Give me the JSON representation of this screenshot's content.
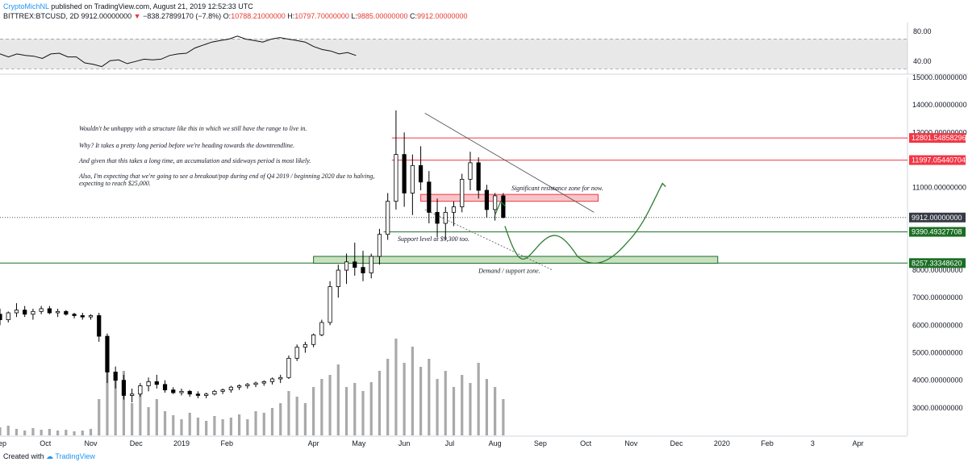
{
  "header": {
    "author": "CryptoMichNL",
    "published": "published on TradingView.com, August 21, 2019 12:52:33 UTC",
    "symbol": "BITTREX:BTCUSD, 2D",
    "last": "9912.00000000",
    "change": "−838.27899170 (−7.8%)",
    "o_label": "O:",
    "o_value": "10788.21000000",
    "h_label": "H:",
    "h_value": "10797.70000000",
    "l_label": "L:",
    "l_value": "9885.00000000",
    "c_label": "C:",
    "c_value": "9912.00000000"
  },
  "footer": {
    "created_with": "Created with",
    "brand": "TradingView"
  },
  "chart_data": [
    {
      "type": "line",
      "name": "RSI",
      "ylim": [
        25,
        90
      ],
      "y_ticks": [
        80,
        40
      ],
      "y_tick_labels": [
        "80.00",
        "40.00"
      ],
      "band": [
        30,
        70
      ],
      "x_range": [
        0,
        63
      ],
      "values": [
        [
          0,
          50
        ],
        [
          1,
          46
        ],
        [
          2,
          50
        ],
        [
          3,
          48
        ],
        [
          4,
          47
        ],
        [
          5,
          44
        ],
        [
          6,
          50
        ],
        [
          7,
          51
        ],
        [
          8,
          46
        ],
        [
          9,
          46
        ],
        [
          10,
          38
        ],
        [
          11,
          36
        ],
        [
          12,
          33
        ],
        [
          13,
          41
        ],
        [
          14,
          42
        ],
        [
          15,
          37
        ],
        [
          16,
          40
        ],
        [
          17,
          43
        ],
        [
          18,
          42
        ],
        [
          19,
          43
        ],
        [
          20,
          48
        ],
        [
          21,
          50
        ],
        [
          22,
          51
        ],
        [
          23,
          58
        ],
        [
          24,
          62
        ],
        [
          25,
          66
        ],
        [
          26,
          68
        ],
        [
          27,
          70
        ],
        [
          28,
          74
        ],
        [
          29,
          70
        ],
        [
          30,
          68
        ],
        [
          31,
          66
        ],
        [
          32,
          70
        ],
        [
          33,
          72
        ],
        [
          34,
          70
        ],
        [
          35,
          68
        ],
        [
          36,
          66
        ],
        [
          37,
          60
        ],
        [
          38,
          56
        ],
        [
          39,
          54
        ],
        [
          40,
          50
        ],
        [
          41,
          52
        ],
        [
          42,
          48
        ]
      ]
    },
    {
      "type": "candlestick",
      "name": "BTCUSD",
      "ylim": [
        2000,
        15000
      ],
      "y_ticks": [
        3000,
        4000,
        5000,
        6000,
        7000,
        8000,
        11000,
        13000,
        14000,
        15000
      ],
      "y_tick_labels": [
        "3000.00000000",
        "4000.00000000",
        "5000.00000000",
        "6000.00000000",
        "7000.00000000",
        "8000.00000000",
        "11000.00000000",
        "13000.00000000",
        "14000.00000000",
        "15000.00000000"
      ],
      "x_ticks": [
        "Sep",
        "Oct",
        "Nov",
        "Dec",
        "2019",
        "Feb",
        "Apr",
        "May",
        "Jun",
        "Jul",
        "Aug",
        "Sep",
        "Oct",
        "Nov",
        "Dec",
        "2020",
        "Feb",
        "3",
        "Apr"
      ],
      "x_range": [
        0,
        110
      ],
      "x_tick_pos": [
        0,
        5.5,
        11,
        16.5,
        22,
        27.5,
        38,
        43.5,
        49,
        54.5,
        60,
        65.5,
        71,
        76.5,
        82,
        87.5,
        93,
        98.5,
        104
      ],
      "candles": [
        [
          0,
          6400,
          6600,
          6000,
          6200
        ],
        [
          1,
          6200,
          6500,
          6100,
          6450
        ],
        [
          2,
          6450,
          6800,
          6300,
          6550
        ],
        [
          3,
          6550,
          6700,
          6300,
          6400
        ],
        [
          4,
          6400,
          6600,
          6200,
          6500
        ],
        [
          5,
          6500,
          6700,
          6400,
          6600
        ],
        [
          6,
          6600,
          6700,
          6400,
          6450
        ],
        [
          7,
          6450,
          6600,
          6300,
          6500
        ],
        [
          8,
          6500,
          6550,
          6350,
          6400
        ],
        [
          9,
          6400,
          6450,
          6250,
          6350
        ],
        [
          10,
          6350,
          6450,
          6200,
          6300
        ],
        [
          11,
          6300,
          6400,
          6200,
          6350
        ],
        [
          12,
          6350,
          6450,
          5400,
          5600
        ],
        [
          13,
          5600,
          5700,
          3900,
          4300
        ],
        [
          14,
          4300,
          4500,
          3700,
          4000
        ],
        [
          15,
          4000,
          4200,
          3300,
          3450
        ],
        [
          16,
          3450,
          3700,
          3200,
          3500
        ],
        [
          17,
          3500,
          3900,
          3400,
          3800
        ],
        [
          18,
          3800,
          4100,
          3600,
          3950
        ],
        [
          19,
          3950,
          4200,
          3700,
          3850
        ],
        [
          20,
          3850,
          4000,
          3550,
          3650
        ],
        [
          21,
          3650,
          3750,
          3500,
          3550
        ],
        [
          22,
          3550,
          3700,
          3450,
          3600
        ],
        [
          23,
          3600,
          3650,
          3400,
          3500
        ],
        [
          24,
          3500,
          3600,
          3350,
          3450
        ],
        [
          25,
          3450,
          3550,
          3350,
          3500
        ],
        [
          26,
          3500,
          3650,
          3450,
          3600
        ],
        [
          27,
          3600,
          3700,
          3500,
          3650
        ],
        [
          28,
          3650,
          3800,
          3550,
          3750
        ],
        [
          29,
          3750,
          3850,
          3650,
          3800
        ],
        [
          30,
          3800,
          3900,
          3700,
          3850
        ],
        [
          31,
          3850,
          3950,
          3750,
          3900
        ],
        [
          32,
          3900,
          4000,
          3800,
          3950
        ],
        [
          33,
          3950,
          4100,
          3850,
          4050
        ],
        [
          34,
          4050,
          4200,
          3900,
          4100
        ],
        [
          35,
          4100,
          4900,
          4050,
          4800
        ],
        [
          36,
          4800,
          5300,
          4700,
          5200
        ],
        [
          37,
          5200,
          5400,
          5000,
          5300
        ],
        [
          38,
          5300,
          5700,
          5200,
          5650
        ],
        [
          39,
          5650,
          6200,
          5600,
          6100
        ],
        [
          40,
          6100,
          7600,
          6000,
          7400
        ],
        [
          41,
          7400,
          8200,
          7000,
          8000
        ],
        [
          42,
          8000,
          8600,
          7500,
          8300
        ],
        [
          43,
          8300,
          9000,
          7800,
          8100
        ],
        [
          44,
          8100,
          8700,
          7600,
          7900
        ],
        [
          45,
          7900,
          8600,
          7700,
          8500
        ],
        [
          46,
          8500,
          9500,
          8200,
          9300
        ],
        [
          47,
          9300,
          10800,
          9100,
          10500
        ],
        [
          48,
          10500,
          13800,
          10200,
          12200
        ],
        [
          49,
          12200,
          13000,
          10300,
          10800
        ],
        [
          50,
          10800,
          12200,
          10000,
          11800
        ],
        [
          51,
          11800,
          12500,
          10900,
          11200
        ],
        [
          52,
          11200,
          11600,
          9700,
          10100
        ],
        [
          53,
          10100,
          10600,
          9200,
          9700
        ],
        [
          54,
          9700,
          10300,
          9100,
          10100
        ],
        [
          55,
          10100,
          10500,
          9600,
          10300
        ],
        [
          56,
          10300,
          11500,
          10100,
          11300
        ],
        [
          57,
          11300,
          12300,
          10900,
          11900
        ],
        [
          58,
          11900,
          12100,
          10600,
          10900
        ],
        [
          59,
          10900,
          11100,
          9900,
          10200
        ],
        [
          60,
          10200,
          10800,
          9800,
          10700
        ],
        [
          61,
          10700,
          10800,
          9885,
          9912
        ]
      ],
      "annotations": {
        "notes": [
          "Wouldn't be unhappy with a structure like this in which we still have the range to live in.",
          "Why? It takes a pretty long period before we're heading towards the downtrendline.",
          "And given that this takes a long time, an accumulation and sideways period is most likely.",
          "Also, I'm expecting that we're going to see a breakout/pop during end of Q4 2019 / beginning 2020 due to halving,",
          "expecting to reach $25,000."
        ],
        "resistance_label": "Significant resistance zone for now.",
        "support_label": "Support level at $9,300 too.",
        "demand_label": "Demand / support zone.",
        "price_tags": [
          {
            "value": 12801.54858296,
            "label": "12801.54858296",
            "color": "#f23645"
          },
          {
            "value": 11997.05440704,
            "label": "11997.05440704",
            "color": "#f23645"
          },
          {
            "value": 9912.0,
            "label": "9912.00000000",
            "color": "#363a45"
          },
          {
            "value": 9390.49327708,
            "label": "9390.49327708",
            "color": "#1b6e24"
          },
          {
            "value": 8257.3334862,
            "label": "8257.33348620",
            "color": "#1b6e24"
          }
        ],
        "resistance_zone": [
          10500,
          10750
        ],
        "demand_zone": [
          8250,
          8500
        ]
      }
    }
  ],
  "colors": {
    "up_candle": "#ffffff",
    "down_candle": "#000000",
    "volume": "#a9a9a9",
    "resistance": "#f23645",
    "support": "#1b6e24",
    "forecast": "#2e7d32",
    "brand": "#2196f3"
  }
}
